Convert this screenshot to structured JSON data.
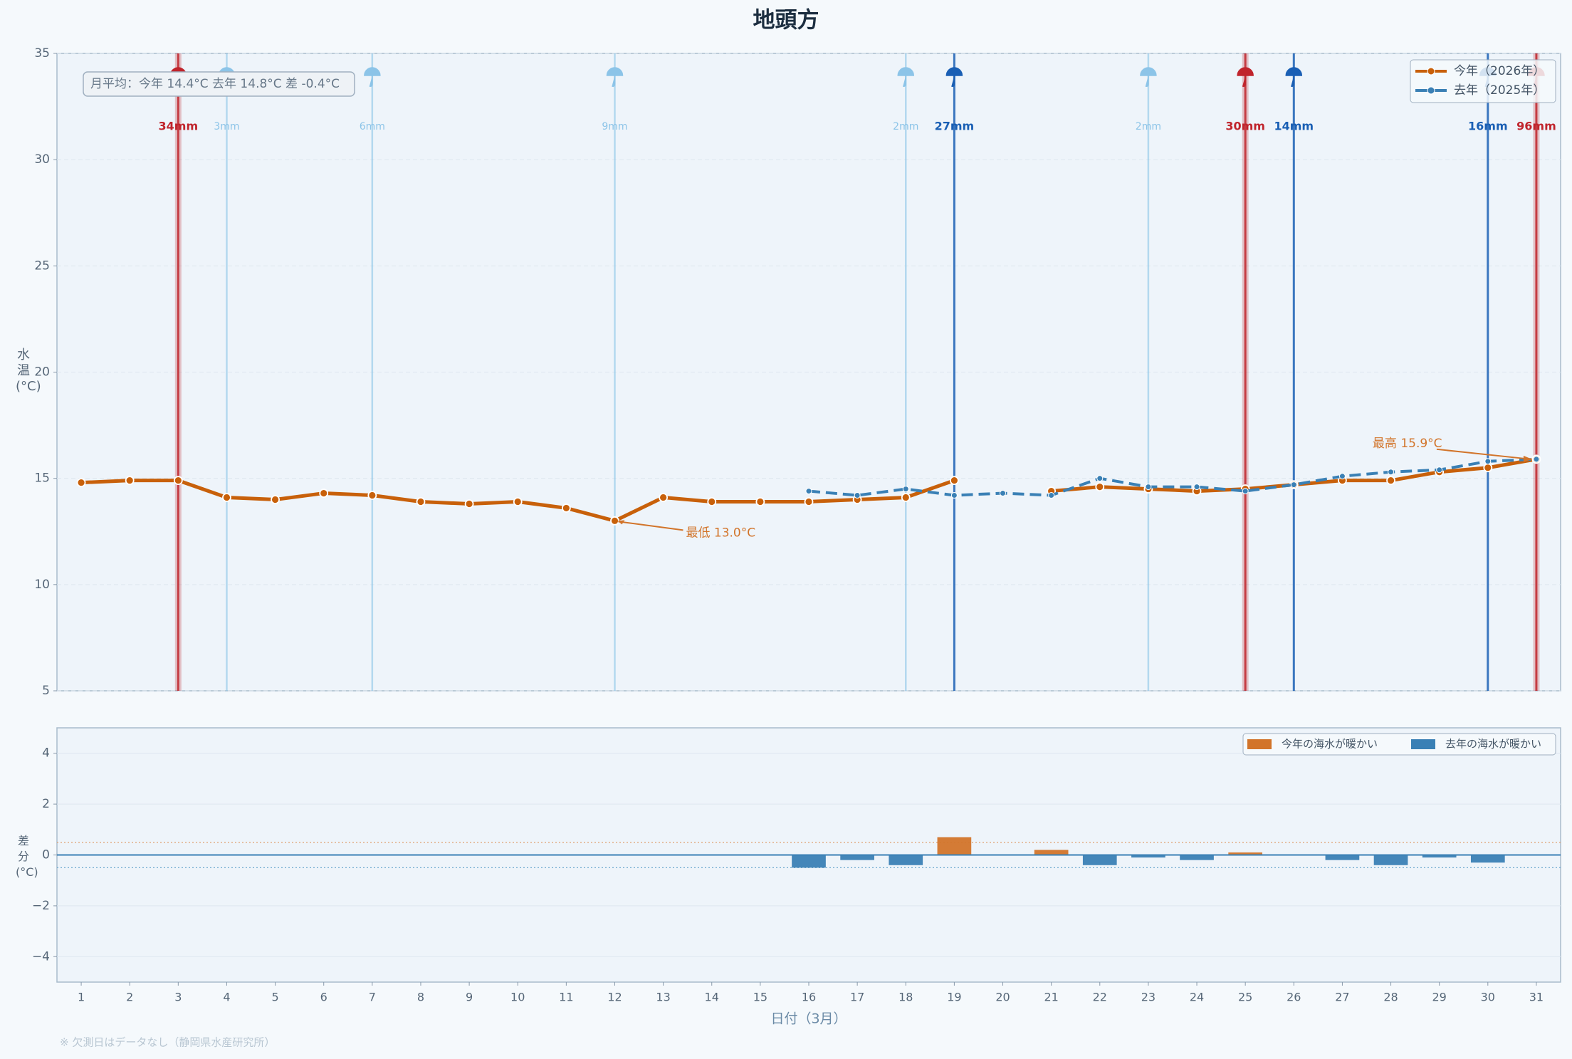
{
  "chart_data": [
    {
      "type": "line",
      "title": "地頭方",
      "ylabel": "水温(°C)",
      "summary": "月平均：今年 14.4°C  去年 14.8°C  差 -0.4°C",
      "x": [
        1,
        2,
        3,
        4,
        5,
        6,
        7,
        8,
        9,
        10,
        11,
        12,
        13,
        14,
        15,
        16,
        17,
        18,
        19,
        20,
        21,
        22,
        23,
        24,
        25,
        26,
        27,
        28,
        29,
        30,
        31
      ],
      "xlim": [
        0.5,
        31.5
      ],
      "ylim": [
        5,
        35
      ],
      "yticks": [
        5,
        10,
        15,
        20,
        25,
        30,
        35
      ],
      "grid": true,
      "legend": "upper right",
      "series": [
        {
          "name": "今年（2026年）",
          "color": "#c8600a",
          "style": "solid",
          "values": [
            14.8,
            14.9,
            14.9,
            14.1,
            14.0,
            14.3,
            14.2,
            13.9,
            13.8,
            13.9,
            13.6,
            13.0,
            14.1,
            13.9,
            13.9,
            13.9,
            14.0,
            14.1,
            14.9,
            null,
            14.4,
            14.6,
            14.5,
            14.4,
            14.5,
            14.7,
            14.9,
            14.9,
            15.3,
            15.5,
            15.9
          ]
        },
        {
          "name": "去年（2025年）",
          "color": "#3a80b5",
          "style": "dashed",
          "values": [
            null,
            null,
            null,
            null,
            null,
            null,
            null,
            null,
            null,
            null,
            null,
            null,
            null,
            null,
            null,
            14.4,
            14.2,
            14.5,
            14.2,
            14.3,
            14.2,
            15.0,
            14.6,
            14.6,
            14.4,
            14.7,
            15.1,
            15.3,
            15.4,
            15.8,
            15.9
          ]
        }
      ],
      "annotations": [
        {
          "text": "最低 13.0°C",
          "x": 12,
          "y": 13.0
        },
        {
          "text": "最高 15.9°C",
          "x": 31,
          "y": 15.9
        }
      ],
      "rain": {
        "days": [
          3,
          4,
          7,
          12,
          18,
          19,
          23,
          25,
          26,
          30,
          31
        ],
        "values": [
          34,
          3,
          6,
          9,
          2,
          27,
          2,
          30,
          14,
          16,
          96
        ],
        "value_labels": [
          "34mm",
          "3mm",
          "6mm",
          "9mm",
          "2mm",
          "27mm",
          "2mm",
          "30mm",
          "14mm",
          "16mm",
          "96mm"
        ],
        "colors": [
          "#c0242c",
          "#8cc4e8",
          "#8cc4e8",
          "#8cc4e8",
          "#8cc4e8",
          "#1a5fb4",
          "#8cc4e8",
          "#c0242c",
          "#1a5fb4",
          "#1a5fb4",
          "#c0242c"
        ]
      }
    },
    {
      "type": "bar",
      "ylabel": "差分(°C)",
      "xlabel": "日付（3月）",
      "footnote": "※ 欠測日はデータなし（静岡県水産研究所）",
      "x": [
        1,
        2,
        3,
        4,
        5,
        6,
        7,
        8,
        9,
        10,
        11,
        12,
        13,
        14,
        15,
        16,
        17,
        18,
        19,
        20,
        21,
        22,
        23,
        24,
        25,
        26,
        27,
        28,
        29,
        30,
        31
      ],
      "xlim": [
        0.5,
        31.5
      ],
      "xticks": [
        1,
        2,
        3,
        4,
        5,
        6,
        7,
        8,
        9,
        10,
        11,
        12,
        13,
        14,
        15,
        16,
        17,
        18,
        19,
        20,
        21,
        22,
        23,
        24,
        25,
        26,
        27,
        28,
        29,
        30,
        31
      ],
      "ylim": [
        -5,
        5
      ],
      "yticks": [
        {
          "value": -4,
          "label": "−4"
        },
        {
          "value": -2,
          "label": "−2"
        },
        0,
        2,
        4
      ],
      "grid": true,
      "legend": "upper right",
      "threshold_lines": [
        0.5,
        -0.5
      ],
      "values": [
        null,
        null,
        null,
        null,
        null,
        null,
        null,
        null,
        null,
        null,
        null,
        null,
        null,
        null,
        null,
        -0.5,
        -0.2,
        -0.4,
        0.7,
        null,
        0.2,
        -0.4,
        -0.1,
        -0.2,
        0.1,
        0,
        -0.2,
        -0.4,
        -0.1,
        -0.3,
        0
      ],
      "legend_entries": [
        {
          "name": "今年の海水が暖かい",
          "color": "#d2742a"
        },
        {
          "name": "去年の海水が暖かい",
          "color": "#3a80b5"
        }
      ]
    }
  ]
}
